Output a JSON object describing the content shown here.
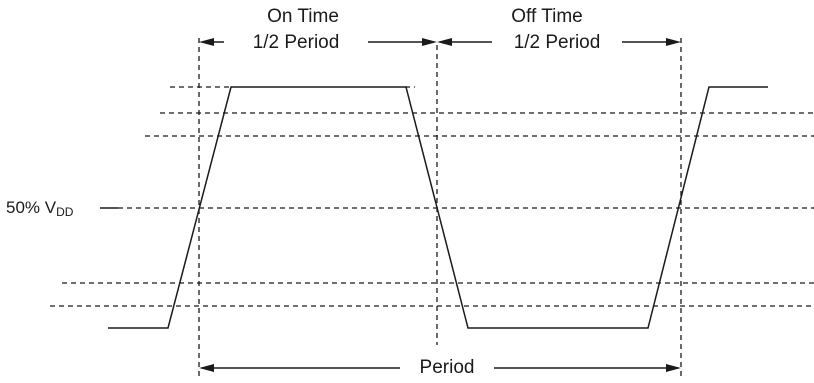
{
  "labels": {
    "on_time": "On Time",
    "off_time": "Off Time",
    "half_period_left": "1/2 Period",
    "half_period_right": "1/2 Period",
    "vdd_prefix": "50% V",
    "vdd_sub": "DD",
    "period": "Period"
  }
}
